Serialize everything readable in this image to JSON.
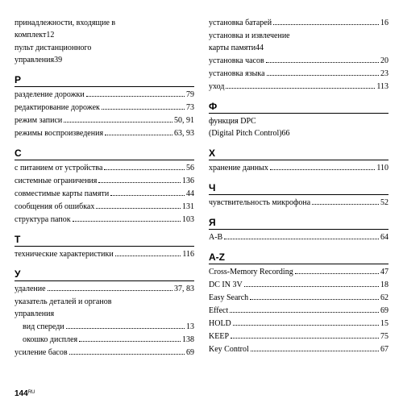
{
  "pageNumber": "144",
  "pageSuffix": "RU",
  "left": {
    "preEntries": [
      {
        "lines": [
          "принадлежности, входящие в",
          "комплект"
        ],
        "page": "12"
      },
      {
        "lines": [
          "пульт дистанционного",
          "управления"
        ],
        "page": "39"
      }
    ],
    "sections": [
      {
        "head": "Р",
        "entries": [
          {
            "label": "разделение дорожки",
            "page": "79"
          },
          {
            "label": "редактирование дорожек",
            "page": "73"
          },
          {
            "label": "режим записи",
            "page": "50, 91"
          },
          {
            "label": "режимы воспроизведения",
            "page": "63, 93"
          }
        ]
      },
      {
        "head": "С",
        "entries": [
          {
            "label": "с питанием от устройства",
            "page": "56"
          },
          {
            "label": "системные ограничения",
            "page": "136"
          },
          {
            "label": "совместимые карты памяти",
            "page": "44"
          },
          {
            "label": "сообщения об ошибках",
            "page": "131"
          },
          {
            "label": "структура папок",
            "page": "103"
          }
        ]
      },
      {
        "head": "Т",
        "entries": [
          {
            "label": "технические характеристики",
            "page": "116"
          }
        ]
      },
      {
        "head": "У",
        "entries": [
          {
            "label": "удаление",
            "page": "37, 83"
          },
          {
            "lines": [
              "указатель деталей и органов",
              "управления"
            ]
          },
          {
            "label": "вид спереди",
            "page": "13",
            "indent": true
          },
          {
            "label": "окошко дисплея",
            "page": "138",
            "indent": true
          },
          {
            "label": "усиление басов",
            "page": "69"
          }
        ]
      }
    ]
  },
  "right": {
    "preEntries": [
      {
        "label": "установка батарей",
        "page": "16"
      },
      {
        "lines": [
          "установка и извлечение",
          "карты памяти"
        ],
        "page": "44"
      },
      {
        "label": "установка часов",
        "page": "20"
      },
      {
        "label": "установка языка",
        "page": "23"
      },
      {
        "label": "уход",
        "page": "113"
      }
    ],
    "sections": [
      {
        "head": "Ф",
        "entries": [
          {
            "lines": [
              "функция DPC",
              "(Digital Pitch Control)"
            ],
            "page": "66"
          }
        ]
      },
      {
        "head": "Х",
        "entries": [
          {
            "label": "хранение данных",
            "page": "110"
          }
        ]
      },
      {
        "head": "Ч",
        "entries": [
          {
            "label": "чувствительность микрофона",
            "page": "52"
          }
        ]
      },
      {
        "head": "Я",
        "entries": [
          {
            "label": "A-B",
            "page": "64"
          }
        ]
      },
      {
        "head": "A-Z",
        "entries": [
          {
            "label": "Cross-Memory Recording",
            "page": "47"
          },
          {
            "label": "DC IN 3V",
            "page": "18"
          },
          {
            "label": "Easy Search",
            "page": "62"
          },
          {
            "label": "Effect",
            "page": "69"
          },
          {
            "label": "HOLD",
            "page": "15"
          },
          {
            "label": "KEEP",
            "page": "75"
          },
          {
            "label": "Key Control",
            "page": "67"
          }
        ]
      }
    ]
  }
}
